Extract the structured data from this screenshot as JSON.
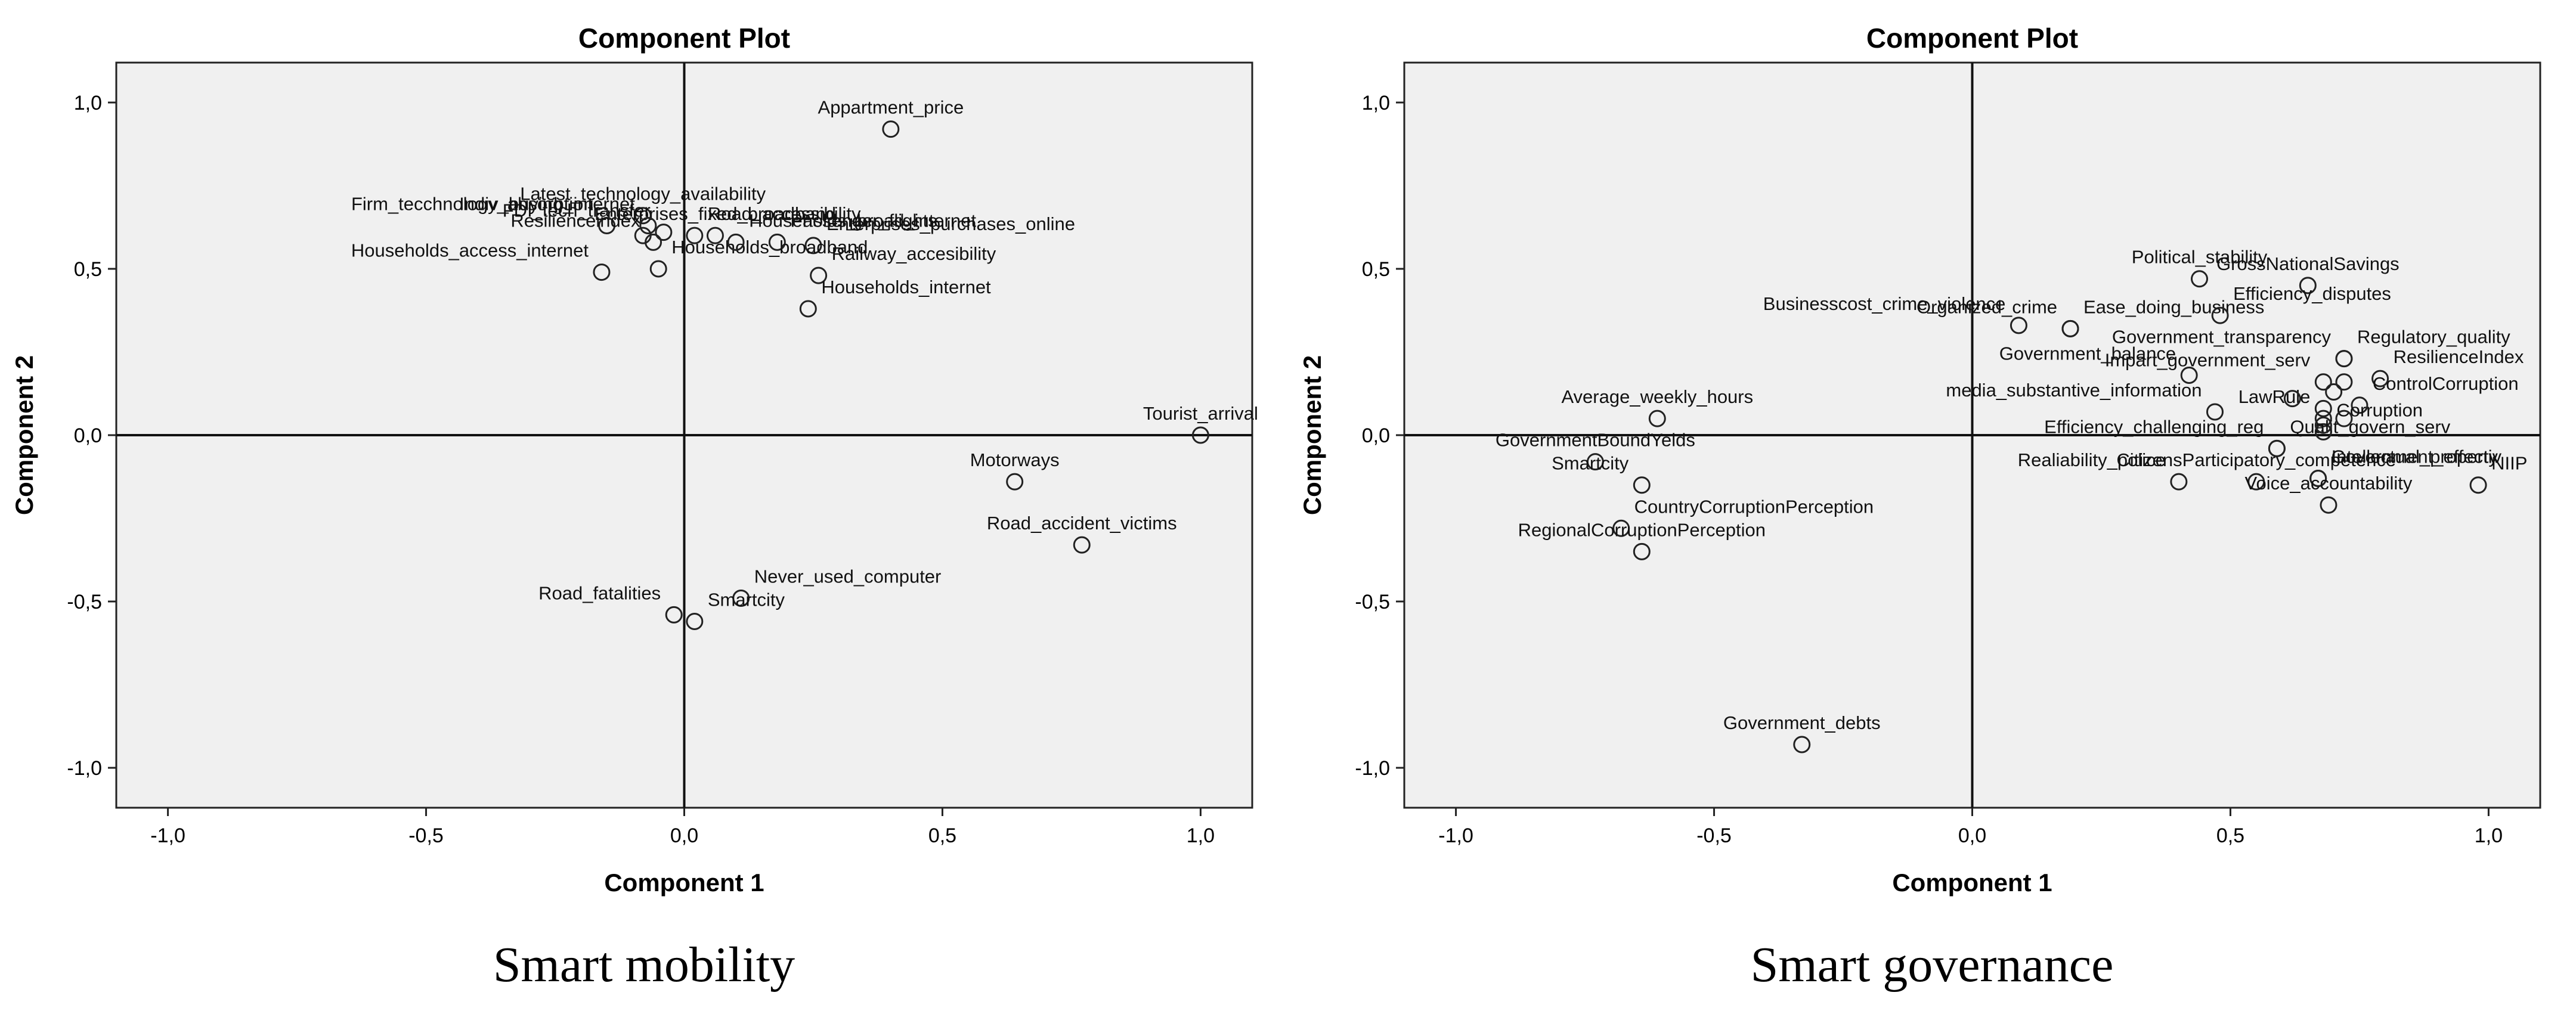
{
  "captions": [
    "Smart mobility",
    "Smart governance"
  ],
  "chart_data": [
    {
      "type": "scatter",
      "title": "Component Plot",
      "xlabel": "Component 1",
      "ylabel": "Component 2",
      "xlim": [
        -1.1,
        1.1
      ],
      "ylim": [
        -1.12,
        1.12
      ],
      "xticks": [
        "-1,0",
        "-0,5",
        "0,0",
        "0,5",
        "1,0"
      ],
      "xtick_values": [
        -1.0,
        -0.5,
        0.0,
        0.5,
        1.0
      ],
      "yticks": [
        "1,0",
        "0,5",
        "0,0",
        "-0,5",
        "-1,0"
      ],
      "ytick_values": [
        1.0,
        0.5,
        0.0,
        -0.5,
        -1.0
      ],
      "grid": false,
      "points": [
        {
          "label": "Appartment_price",
          "x": 0.4,
          "y": 0.92,
          "anchor": "middle"
        },
        {
          "label": "Latest_technology_availability",
          "x": -0.08,
          "y": 0.66,
          "anchor": "middle"
        },
        {
          "label": "Enterprises_fixed_broadband",
          "x": 0.06,
          "y": 0.6,
          "anchor": "middle"
        },
        {
          "label": "Enterprises_purchases_online",
          "x": 0.25,
          "y": 0.57,
          "anchor": "start"
        },
        {
          "label": "Indiv_buying_internet",
          "x": -0.07,
          "y": 0.63,
          "anchor": "end"
        },
        {
          "label": "Firm_tecchnology_absorbtion",
          "x": -0.15,
          "y": 0.63,
          "anchor": "end"
        },
        {
          "label": "Passenger_flights",
          "x": 0.18,
          "y": 0.58,
          "anchor": "start"
        },
        {
          "label": "Resilienceindex",
          "x": -0.06,
          "y": 0.58,
          "anchor": "end"
        },
        {
          "label": "Railway_accesibility",
          "x": 0.26,
          "y": 0.48,
          "anchor": "start"
        },
        {
          "label": "Road_accessibility",
          "x": 0.02,
          "y": 0.6,
          "anchor": "start"
        },
        {
          "label": "Households_access_internet",
          "x": -0.16,
          "y": 0.49,
          "anchor": "end"
        },
        {
          "label": "Households_broadband",
          "x": -0.05,
          "y": 0.5,
          "anchor": "start"
        },
        {
          "label": "Households_internet",
          "x": 0.24,
          "y": 0.38,
          "anchor": "start"
        },
        {
          "label": "FDI_tech_transfer",
          "x": -0.04,
          "y": 0.61,
          "anchor": "end"
        },
        {
          "label": "Households_broad_internet",
          "x": 0.1,
          "y": 0.58,
          "anchor": "start"
        },
        {
          "label": "Tourist_arrival",
          "x": 1.0,
          "y": 0.0,
          "anchor": "middle"
        },
        {
          "label": "Motorways",
          "x": 0.64,
          "y": -0.14,
          "anchor": "middle"
        },
        {
          "label": "Road_accident_victims",
          "x": 0.77,
          "y": -0.33,
          "anchor": "middle"
        },
        {
          "label": "Never_used_computer",
          "x": 0.11,
          "y": -0.49,
          "anchor": "start"
        },
        {
          "label": "Road_fatalities",
          "x": -0.02,
          "y": -0.54,
          "anchor": "end"
        },
        {
          "label": "Smartcity",
          "x": 0.02,
          "y": -0.56,
          "anchor": "start"
        },
        {
          "label": "",
          "x": -0.08,
          "y": 0.6,
          "anchor": "middle"
        }
      ]
    },
    {
      "type": "scatter",
      "title": "Component Plot",
      "xlabel": "Component 1",
      "ylabel": "Component 2",
      "xlim": [
        -1.1,
        1.1
      ],
      "ylim": [
        -1.12,
        1.12
      ],
      "xticks": [
        "-1,0",
        "-0,5",
        "0,0",
        "0,5",
        "1,0"
      ],
      "xtick_values": [
        -1.0,
        -0.5,
        0.0,
        0.5,
        1.0
      ],
      "yticks": [
        "1,0",
        "0,5",
        "0,0",
        "-0,5",
        "-1,0"
      ],
      "ytick_values": [
        1.0,
        0.5,
        0.0,
        -0.5,
        -1.0
      ],
      "grid": false,
      "points": [
        {
          "label": "Political_stability",
          "x": 0.44,
          "y": 0.47,
          "anchor": "middle"
        },
        {
          "label": "GrossNationalSavings",
          "x": 0.65,
          "y": 0.45,
          "anchor": "middle"
        },
        {
          "label": "Ease_doing_business",
          "x": 0.19,
          "y": 0.32,
          "anchor": "start"
        },
        {
          "label": "Efficiency_disputes",
          "x": 0.48,
          "y": 0.36,
          "anchor": "start"
        },
        {
          "label": "Businesscost_crime_violence",
          "x": 0.09,
          "y": 0.33,
          "anchor": "end"
        },
        {
          "label": "Organized_crime",
          "x": 0.19,
          "y": 0.32,
          "anchor": "end"
        },
        {
          "label": "Government_transparency",
          "x": 0.72,
          "y": 0.23,
          "anchor": "end"
        },
        {
          "label": "Regulatory_quality",
          "x": 0.72,
          "y": 0.23,
          "anchor": "start"
        },
        {
          "label": "Government_balance",
          "x": 0.42,
          "y": 0.18,
          "anchor": "end"
        },
        {
          "label": "Impart_government_serv",
          "x": 0.68,
          "y": 0.16,
          "anchor": "end"
        },
        {
          "label": "ResilienceIndex",
          "x": 0.79,
          "y": 0.17,
          "anchor": "start"
        },
        {
          "label": "Average_weekly_hours",
          "x": -0.61,
          "y": 0.05,
          "anchor": "middle"
        },
        {
          "label": "media_substantive_information",
          "x": 0.47,
          "y": 0.07,
          "anchor": "end"
        },
        {
          "label": "LawRule",
          "x": 0.68,
          "y": 0.05,
          "anchor": "end"
        },
        {
          "label": "ControlCorruption",
          "x": 0.75,
          "y": 0.09,
          "anchor": "start"
        },
        {
          "label": "Corruption",
          "x": 0.68,
          "y": 0.01,
          "anchor": "start"
        },
        {
          "label": "GovernmentBoundYelds",
          "x": -0.73,
          "y": -0.08,
          "anchor": "middle"
        },
        {
          "label": "Efficiency_challenging_reg",
          "x": 0.59,
          "y": -0.04,
          "anchor": "end"
        },
        {
          "label": "Qualit_govern_serv",
          "x": 0.59,
          "y": -0.04,
          "anchor": "start"
        },
        {
          "label": "Government_effectiv",
          "x": 0.67,
          "y": -0.13,
          "anchor": "start"
        },
        {
          "label": "Intellectual_property",
          "x": 0.67,
          "y": -0.13,
          "anchor": "start"
        },
        {
          "label": "Smartcity",
          "x": -0.64,
          "y": -0.15,
          "anchor": "end"
        },
        {
          "label": "Realiability_police",
          "x": 0.4,
          "y": -0.14,
          "anchor": "end"
        },
        {
          "label": "CountryCorruptionPerception",
          "x": -0.68,
          "y": -0.28,
          "anchor": "start"
        },
        {
          "label": "CitizensParticipatory_competence",
          "x": 0.55,
          "y": -0.14,
          "anchor": "middle"
        },
        {
          "label": "Voice_accountability",
          "x": 0.69,
          "y": -0.21,
          "anchor": "middle"
        },
        {
          "label": "NIIP",
          "x": 0.98,
          "y": -0.15,
          "anchor": "start"
        },
        {
          "label": "RegionalCorruptionPerception",
          "x": -0.64,
          "y": -0.35,
          "anchor": "middle"
        },
        {
          "label": "Government_debts",
          "x": -0.33,
          "y": -0.93,
          "anchor": "middle"
        },
        {
          "label": "",
          "x": 0.62,
          "y": 0.11,
          "anchor": "middle"
        },
        {
          "label": "",
          "x": 0.7,
          "y": 0.13,
          "anchor": "middle"
        },
        {
          "label": "",
          "x": 0.68,
          "y": 0.08,
          "anchor": "middle"
        },
        {
          "label": "",
          "x": 0.72,
          "y": 0.05,
          "anchor": "middle"
        },
        {
          "label": "",
          "x": 0.68,
          "y": 0.03,
          "anchor": "middle"
        },
        {
          "label": "",
          "x": 0.72,
          "y": 0.16,
          "anchor": "middle"
        }
      ]
    }
  ]
}
